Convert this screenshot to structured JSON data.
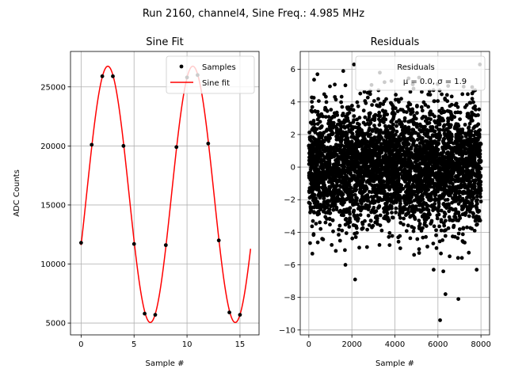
{
  "figure": {
    "suptitle": "Run 2160, channel4, Sine Freq.: 4.985 MHz"
  },
  "chart_data": [
    {
      "type": "line",
      "title": "Sine Fit",
      "xlabel": "Sample #",
      "ylabel": "ADC Counts",
      "xlim": [
        -1,
        16.8
      ],
      "ylim": [
        4000,
        28000
      ],
      "xticks": [
        0,
        5,
        10,
        15
      ],
      "yticks": [
        5000,
        10000,
        15000,
        20000,
        25000
      ],
      "grid": true,
      "legend_position": "top-right",
      "series": [
        {
          "name": "Samples",
          "kind": "scatter",
          "color": "#000000",
          "x": [
            0,
            1,
            2,
            3,
            4,
            5,
            6,
            7,
            8,
            9,
            10,
            11,
            12,
            13,
            14,
            15
          ],
          "y": [
            11800,
            20100,
            25900,
            25900,
            20000,
            11700,
            5800,
            5700,
            11600,
            19900,
            25800,
            26000,
            20200,
            12000,
            5900,
            5700
          ]
        },
        {
          "name": "Sine fit",
          "kind": "line",
          "color": "#ff0000",
          "model": {
            "offset": 15900,
            "amplitude": 10850,
            "period": 8.02,
            "phase_x": 0.52,
            "x_range": [
              0,
              16
            ]
          }
        }
      ]
    },
    {
      "type": "scatter",
      "title": "Residuals",
      "xlabel": "Sample #",
      "ylabel": "",
      "xlim": [
        -400,
        8400
      ],
      "ylim": [
        -10.3,
        7.1
      ],
      "xticks": [
        0,
        2000,
        4000,
        6000,
        8000
      ],
      "yticks": [
        -10,
        -8,
        -6,
        -4,
        -2,
        0,
        2,
        4,
        6
      ],
      "grid": true,
      "legend_position": "top-right",
      "series": [
        {
          "name": "Residuals",
          "color": "#000000",
          "x_range": [
            0,
            8000
          ],
          "mean": 0.0,
          "std": 1.9,
          "outliers": [
            {
              "x": 2150,
              "y": -6.9
            },
            {
              "x": 6100,
              "y": -9.4
            },
            {
              "x": 6350,
              "y": -7.8
            },
            {
              "x": 6950,
              "y": -8.1
            },
            {
              "x": 6250,
              "y": -6.4
            },
            {
              "x": 1700,
              "y": -6.0
            },
            {
              "x": 5800,
              "y": -6.3
            },
            {
              "x": 7800,
              "y": -6.3
            },
            {
              "x": 400,
              "y": 5.7
            },
            {
              "x": 1600,
              "y": 5.9
            },
            {
              "x": 2100,
              "y": 6.3
            },
            {
              "x": 7950,
              "y": 6.3
            },
            {
              "x": 3300,
              "y": 5.8
            }
          ]
        }
      ],
      "legend_stats": {
        "line1": "Residuals",
        "line2": "μ = 0.0, σ = 1.9"
      }
    }
  ]
}
